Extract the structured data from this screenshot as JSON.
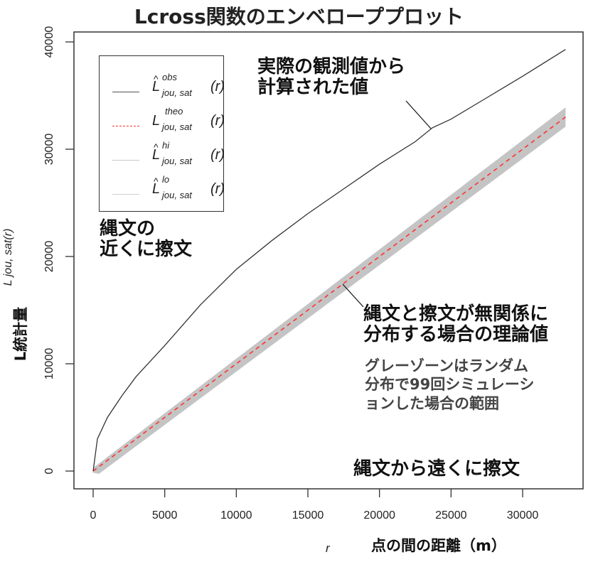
{
  "title": "Lcross関数のエンベローププロット",
  "axes": {
    "x_math_label": "r",
    "x_jp_label": "点の間の距離（m）",
    "y_math_label": "L jou, sat(r)",
    "y_jp_label": "L統計量",
    "x_ticks": [
      "0",
      "5000",
      "10000",
      "15000",
      "20000",
      "25000",
      "30000"
    ],
    "y_ticks": [
      "0",
      "10000",
      "20000",
      "30000",
      "40000"
    ]
  },
  "legend": {
    "items": [
      {
        "name": "obs",
        "main": "L",
        "hat": "^",
        "sup": "obs",
        "sub": "jou, sat",
        "arg": "(r)",
        "style": "solid",
        "color": "#444444"
      },
      {
        "name": "theo",
        "main": "L",
        "hat": "",
        "sup": "theo",
        "sub": "jou, sat",
        "arg": "(r)",
        "style": "dashed",
        "color": "#ff3333"
      },
      {
        "name": "hi",
        "main": "L",
        "hat": "^",
        "sup": "hi",
        "sub": "jou, sat",
        "arg": "(r)",
        "style": "solid",
        "color": "#c8c8c8"
      },
      {
        "name": "lo",
        "main": "L",
        "hat": "^",
        "sup": "lo",
        "sub": "jou, sat",
        "arg": "(r)",
        "style": "solid",
        "color": "#d0d0d0"
      }
    ]
  },
  "annotations": {
    "observed": "実際の観測値から\n計算された値",
    "near": "縄文の\n近くに擦文",
    "theoretical": "縄文と擦文が無関係に\n分布する場合の理論値",
    "envelope": "グレーゾーンはランダム\n分布で99回シミュレーシ\nョンした場合の範囲",
    "far": "縄文から遠くに擦文"
  },
  "colors": {
    "observed": "#333333",
    "theoretical": "#ff3333",
    "envelope": "#c4c4c4",
    "axis": "#333333"
  },
  "chart_data": {
    "type": "line",
    "title": "Lcross関数のエンベローププロット",
    "xlabel": "r  点の間の距離（m）",
    "ylabel": "L jou,sat(r)  L統計量",
    "xlim": [
      0,
      33000
    ],
    "ylim": [
      0,
      40000
    ],
    "grid": false,
    "legend_position": "top-left",
    "series": [
      {
        "name": "obs",
        "x": [
          0,
          300,
          1000,
          2000,
          3000,
          5000,
          7500,
          10000,
          12500,
          15000,
          17500,
          20000,
          22500,
          23700,
          25000,
          27500,
          30000,
          33000
        ],
        "values": [
          0,
          3000,
          5000,
          7000,
          8800,
          11700,
          15500,
          18800,
          21500,
          24000,
          26300,
          28600,
          30700,
          32000,
          32800,
          34800,
          36800,
          39300
        ]
      },
      {
        "name": "theo",
        "x": [
          0,
          33000
        ],
        "values": [
          0,
          33000
        ]
      },
      {
        "name": "hi",
        "x": [
          0,
          33000
        ],
        "values": [
          0,
          33900
        ]
      },
      {
        "name": "lo",
        "x": [
          0,
          33000
        ],
        "values": [
          0,
          32100
        ]
      }
    ]
  }
}
